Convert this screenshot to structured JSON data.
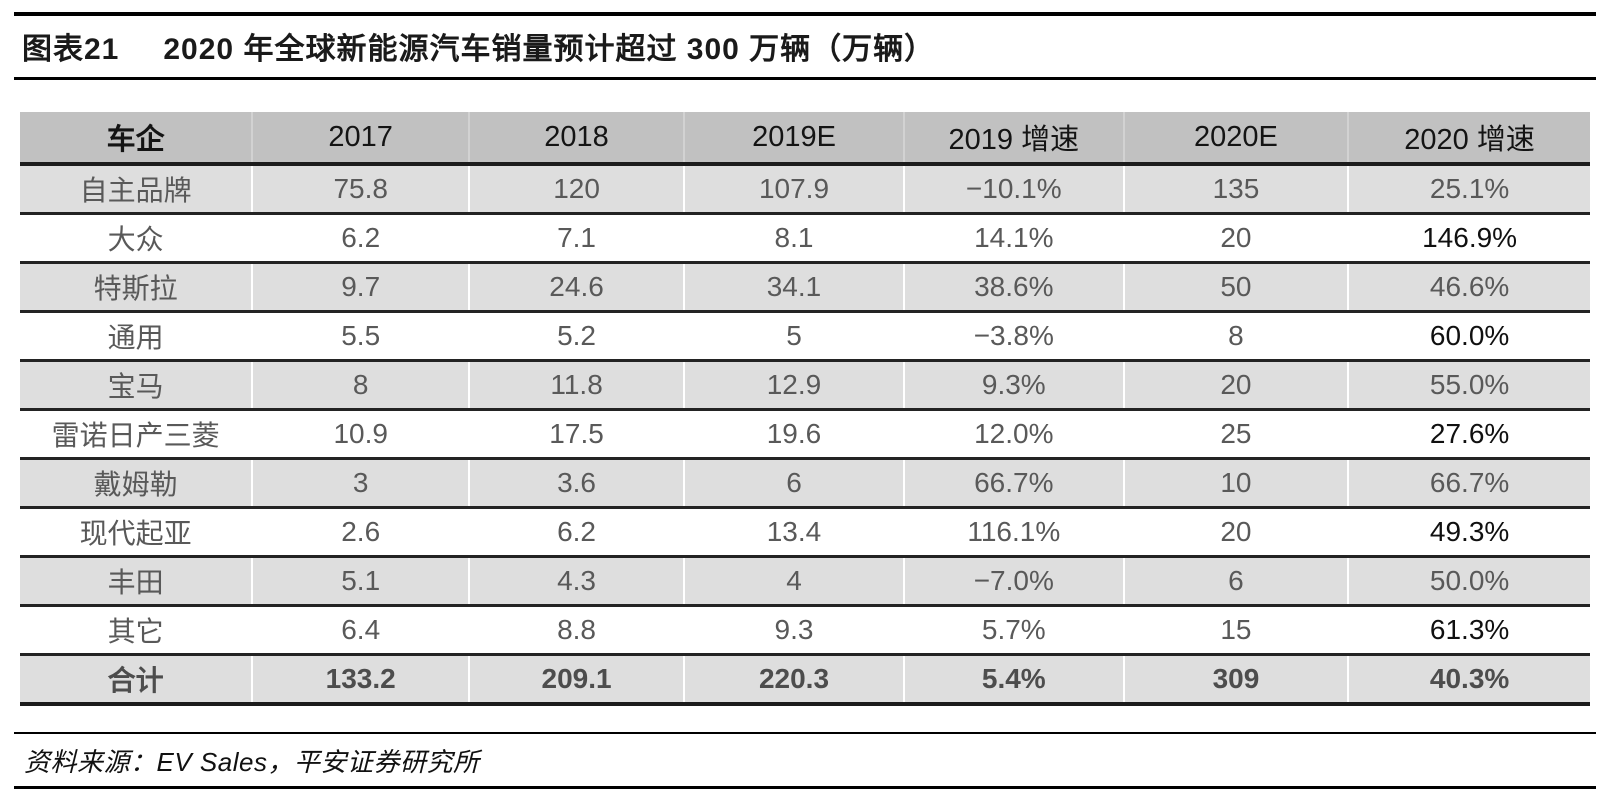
{
  "figure": {
    "label": "图表21",
    "title": "2020 年全球新能源汽车销量预计超过 300 万辆（万辆）"
  },
  "table": {
    "columns": [
      "车企",
      "2017",
      "2018",
      "2019E",
      "2019 增速",
      "2020E",
      "2020 增速"
    ],
    "rows": [
      {
        "name": "自主品牌",
        "values": [
          "75.8",
          "120",
          "107.9",
          "−10.1%",
          "135",
          "25.1%"
        ],
        "shaded": true,
        "total": false
      },
      {
        "name": "大众",
        "values": [
          "6.2",
          "7.1",
          "8.1",
          "14.1%",
          "20",
          "146.9%"
        ],
        "shaded": false,
        "total": false
      },
      {
        "name": "特斯拉",
        "values": [
          "9.7",
          "24.6",
          "34.1",
          "38.6%",
          "50",
          "46.6%"
        ],
        "shaded": true,
        "total": false
      },
      {
        "name": "通用",
        "values": [
          "5.5",
          "5.2",
          "5",
          "−3.8%",
          "8",
          "60.0%"
        ],
        "shaded": false,
        "total": false
      },
      {
        "name": "宝马",
        "values": [
          "8",
          "11.8",
          "12.9",
          "9.3%",
          "20",
          "55.0%"
        ],
        "shaded": true,
        "total": false
      },
      {
        "name": "雷诺日产三菱",
        "values": [
          "10.9",
          "17.5",
          "19.6",
          "12.0%",
          "25",
          "27.6%"
        ],
        "shaded": false,
        "total": false
      },
      {
        "name": "戴姆勒",
        "values": [
          "3",
          "3.6",
          "6",
          "66.7%",
          "10",
          "66.7%"
        ],
        "shaded": true,
        "total": false
      },
      {
        "name": "现代起亚",
        "values": [
          "2.6",
          "6.2",
          "13.4",
          "116.1%",
          "20",
          "49.3%"
        ],
        "shaded": false,
        "total": false
      },
      {
        "name": "丰田",
        "values": [
          "5.1",
          "4.3",
          "4",
          "−7.0%",
          "6",
          "50.0%"
        ],
        "shaded": true,
        "total": false
      },
      {
        "name": "其它",
        "values": [
          "6.4",
          "8.8",
          "9.3",
          "5.7%",
          "15",
          "61.3%"
        ],
        "shaded": false,
        "total": false
      },
      {
        "name": "合计",
        "values": [
          "133.2",
          "209.1",
          "220.3",
          "5.4%",
          "309",
          "40.3%"
        ],
        "shaded": true,
        "total": true
      }
    ],
    "column_widths_pct": [
      14.8,
      13.8,
      13.7,
      14.0,
      14.0,
      14.3,
      15.4
    ]
  },
  "footer": {
    "source": "资料来源：EV Sales，平安证券研究所"
  },
  "colors": {
    "header_bg": "#c1c1c1",
    "shaded_row_bg": "#dedede",
    "row_border": "#232323",
    "body_text": "#595959",
    "emphasis_text": "#101010"
  }
}
